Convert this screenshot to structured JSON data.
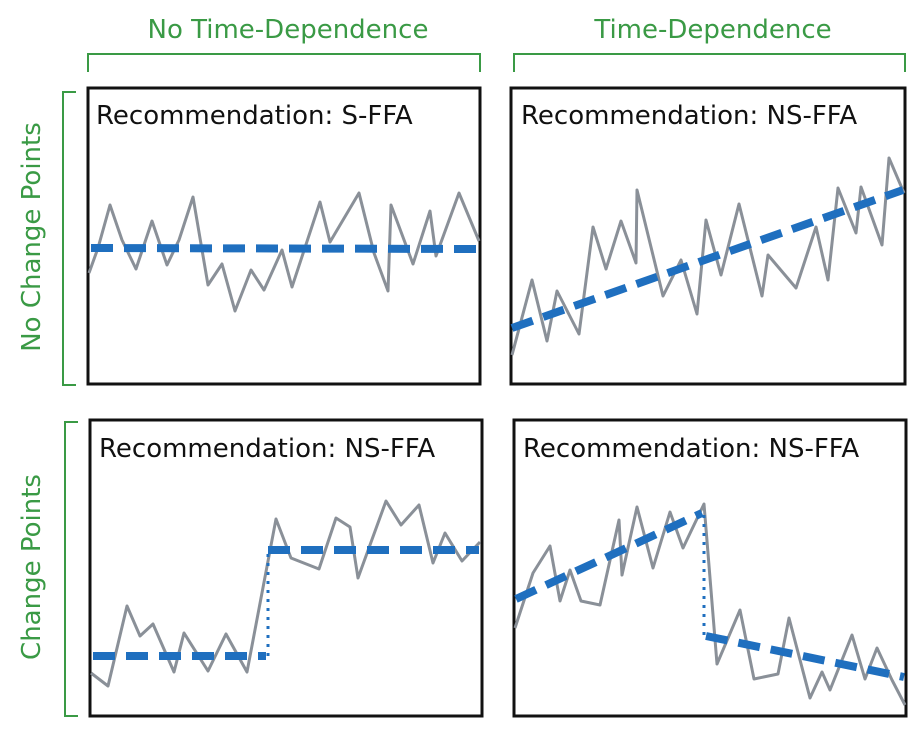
{
  "columns": {
    "left": "No Time-Dependence",
    "right": "Time-Dependence"
  },
  "rows": {
    "top": "No Change Points",
    "bottom": "Change Points"
  },
  "panels": [
    {
      "id": "tl",
      "label": "Recommendation: S-FFA"
    },
    {
      "id": "tr",
      "label": "Recommendation: NS-FFA"
    },
    {
      "id": "bl",
      "label": "Recommendation: NS-FFA"
    },
    {
      "id": "br",
      "label": "Recommendation: NS-FFA"
    }
  ],
  "colors": {
    "bracket": "#3a9a45",
    "series": "#8a9098",
    "trend": "#1f6fbf",
    "frame": "#111111"
  }
}
